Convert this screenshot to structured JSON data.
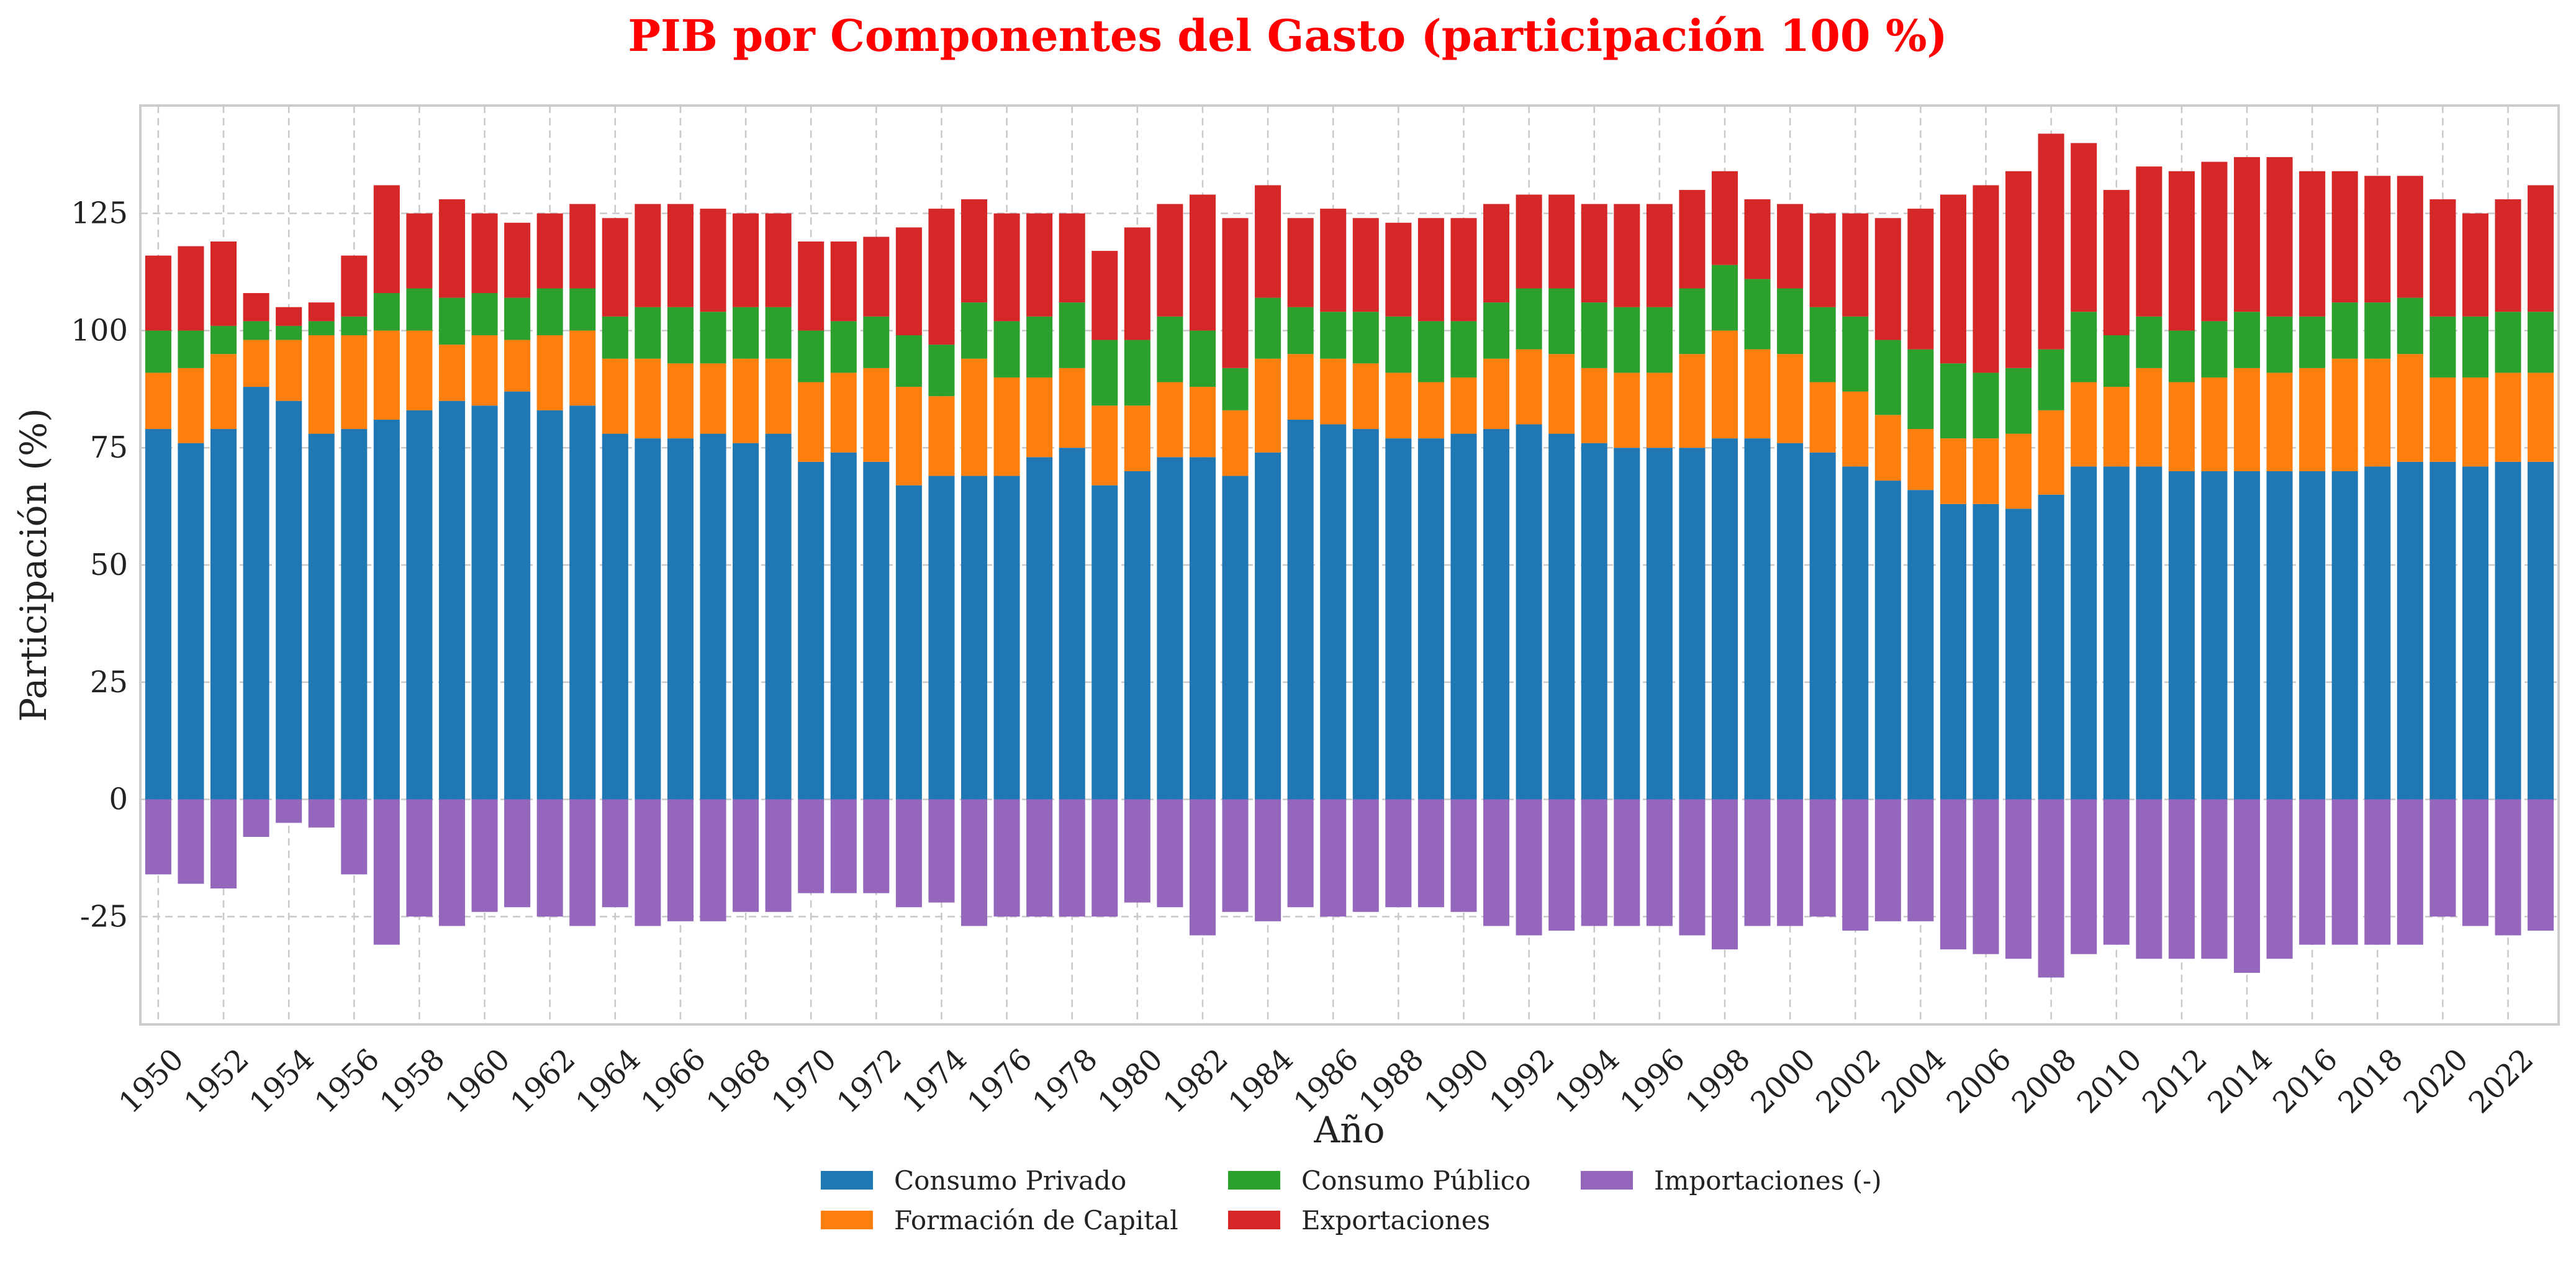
{
  "chart_data": {
    "type": "bar",
    "stacked": true,
    "title": "PIB por Componentes del Gasto (participación 100 %)",
    "title_color": "#ff0000",
    "xlabel": "Año",
    "ylabel": "Participación (%)",
    "ylim": [
      -48,
      148
    ],
    "yticks": [
      -25,
      0,
      25,
      50,
      75,
      100,
      125
    ],
    "grid": true,
    "legend_position": "bottom-center",
    "x": [
      1950,
      1951,
      1952,
      1953,
      1954,
      1955,
      1956,
      1957,
      1958,
      1959,
      1960,
      1961,
      1962,
      1963,
      1964,
      1965,
      1966,
      1967,
      1968,
      1969,
      1970,
      1971,
      1972,
      1973,
      1974,
      1975,
      1976,
      1977,
      1978,
      1979,
      1980,
      1981,
      1982,
      1983,
      1984,
      1985,
      1986,
      1987,
      1988,
      1989,
      1990,
      1991,
      1992,
      1993,
      1994,
      1995,
      1996,
      1997,
      1998,
      1999,
      2000,
      2001,
      2002,
      2003,
      2004,
      2005,
      2006,
      2007,
      2008,
      2009,
      2010,
      2011,
      2012,
      2013,
      2014,
      2015,
      2016,
      2017,
      2018,
      2019,
      2020,
      2021,
      2022,
      2023
    ],
    "xtick_labels": [
      1950,
      1952,
      1954,
      1956,
      1958,
      1960,
      1962,
      1964,
      1966,
      1968,
      1970,
      1972,
      1974,
      1976,
      1978,
      1980,
      1982,
      1984,
      1986,
      1988,
      1990,
      1992,
      1994,
      1996,
      1998,
      2000,
      2002,
      2004,
      2006,
      2008,
      2010,
      2012,
      2014,
      2016,
      2018,
      2020,
      2022
    ],
    "series": [
      {
        "name": "Consumo Privado",
        "color": "#1f77b4",
        "values": [
          79,
          76,
          79,
          88,
          85,
          78,
          79,
          81,
          83,
          85,
          84,
          87,
          83,
          84,
          78,
          77,
          77,
          78,
          76,
          78,
          72,
          74,
          72,
          67,
          69,
          69,
          69,
          73,
          75,
          67,
          70,
          73,
          73,
          69,
          74,
          81,
          80,
          79,
          77,
          77,
          78,
          79,
          80,
          78,
          76,
          75,
          75,
          75,
          77,
          77,
          76,
          74,
          71,
          68,
          66,
          63,
          63,
          62,
          65,
          71,
          71,
          71,
          70,
          70,
          70,
          70,
          70,
          70,
          71,
          72,
          72,
          71,
          72,
          72
        ]
      },
      {
        "name": "Formación de Capital",
        "color": "#ff7f0e",
        "values": [
          12,
          16,
          16,
          10,
          13,
          21,
          20,
          19,
          17,
          12,
          15,
          11,
          16,
          16,
          16,
          17,
          16,
          15,
          18,
          16,
          17,
          17,
          20,
          21,
          17,
          25,
          21,
          17,
          17,
          17,
          14,
          16,
          15,
          14,
          20,
          14,
          14,
          14,
          14,
          12,
          12,
          15,
          16,
          17,
          16,
          16,
          16,
          20,
          23,
          19,
          19,
          15,
          16,
          14,
          13,
          14,
          14,
          16,
          18,
          18,
          17,
          21,
          19,
          20,
          22,
          21,
          22,
          24,
          23,
          23,
          18,
          19,
          19,
          19
        ]
      },
      {
        "name": "Consumo Público",
        "color": "#2ca02c",
        "values": [
          9,
          8,
          6,
          4,
          3,
          3,
          4,
          8,
          9,
          10,
          9,
          9,
          10,
          9,
          9,
          11,
          12,
          11,
          11,
          11,
          11,
          11,
          11,
          11,
          11,
          12,
          12,
          13,
          14,
          14,
          14,
          14,
          12,
          9,
          13,
          10,
          10,
          11,
          12,
          13,
          12,
          12,
          13,
          14,
          14,
          14,
          14,
          14,
          14,
          15,
          14,
          16,
          16,
          16,
          17,
          16,
          14,
          14,
          13,
          15,
          11,
          11,
          11,
          12,
          12,
          12,
          11,
          12,
          12,
          12,
          13,
          13,
          13,
          13
        ]
      },
      {
        "name": "Exportaciones",
        "color": "#d62728",
        "values": [
          16,
          18,
          18,
          6,
          4,
          4,
          13,
          23,
          16,
          21,
          17,
          16,
          16,
          18,
          21,
          22,
          22,
          22,
          20,
          20,
          19,
          17,
          17,
          23,
          29,
          22,
          23,
          22,
          19,
          19,
          24,
          24,
          29,
          32,
          24,
          19,
          22,
          20,
          20,
          22,
          22,
          21,
          20,
          20,
          21,
          22,
          22,
          21,
          20,
          17,
          18,
          20,
          22,
          26,
          30,
          36,
          40,
          42,
          46,
          36,
          31,
          32,
          34,
          34,
          33,
          34,
          31,
          28,
          27,
          26,
          25,
          22,
          24,
          27
        ]
      },
      {
        "name": "Importaciones (-)",
        "color": "#9467bd",
        "values": [
          -16,
          -18,
          -19,
          -8,
          -5,
          -6,
          -16,
          -31,
          -25,
          -27,
          -24,
          -23,
          -25,
          -27,
          -23,
          -27,
          -26,
          -26,
          -24,
          -24,
          -20,
          -20,
          -20,
          -23,
          -22,
          -27,
          -25,
          -25,
          -25,
          -25,
          -22,
          -23,
          -29,
          -24,
          -26,
          -23,
          -25,
          -24,
          -23,
          -23,
          -24,
          -27,
          -29,
          -28,
          -27,
          -27,
          -27,
          -29,
          -32,
          -27,
          -27,
          -25,
          -28,
          -26,
          -26,
          -32,
          -33,
          -34,
          -38,
          -33,
          -31,
          -34,
          -34,
          -34,
          -37,
          -34,
          -31,
          -31,
          -31,
          -31,
          -25,
          -27,
          -29,
          -28
        ]
      }
    ]
  }
}
